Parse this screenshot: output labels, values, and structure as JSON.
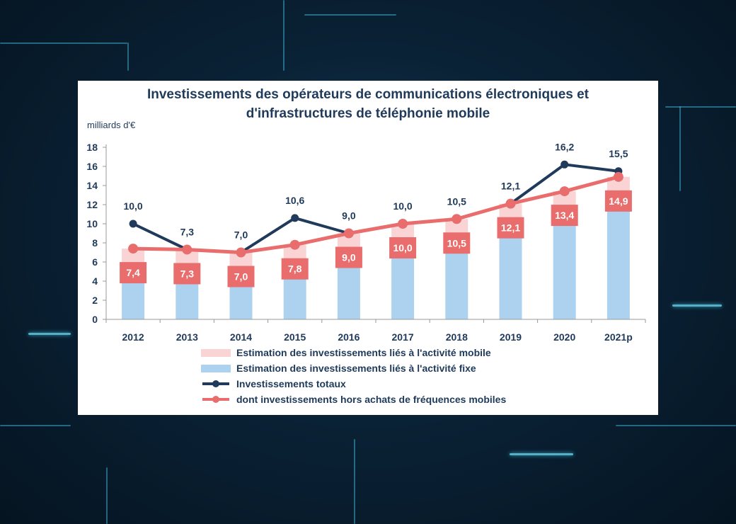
{
  "chart_data": {
    "type": "bar",
    "title": "Investissements des opérateurs de communications électroniques et d'infrastructures de téléphonie mobile",
    "title_lines": [
      "Investissements des opérateurs de communications électroniques et",
      "d'infrastructures de téléphonie mobile"
    ],
    "ylabel": "milliards d'€",
    "xlabel": "",
    "ylim": [
      0,
      18
    ],
    "y_ticks": [
      "0",
      "2",
      "4",
      "6",
      "8",
      "10",
      "12",
      "14",
      "16",
      "18"
    ],
    "categories": [
      "2012",
      "2013",
      "2014",
      "2015",
      "2016",
      "2017",
      "2018",
      "2019",
      "2020",
      "2021p"
    ],
    "series": [
      {
        "name": "Estimation des investissements liés à l'activité fixe",
        "kind": "bar",
        "color": "#acd2ef",
        "values": [
          4.7,
          4.5,
          4.5,
          4.9,
          6.0,
          6.7,
          7.2,
          9.2,
          10.6,
          11.5
        ]
      },
      {
        "name": "Estimation des investissements liés à l'activité mobile",
        "kind": "bar-stacked",
        "color": "#fad4d4",
        "values": [
          2.7,
          2.8,
          2.5,
          2.9,
          3.0,
          3.3,
          3.3,
          2.9,
          2.8,
          3.4
        ]
      },
      {
        "name": "Investissements totaux",
        "kind": "line",
        "color": "#1f3a5a",
        "values": [
          10.0,
          7.3,
          7.0,
          10.6,
          9.0,
          null,
          null,
          12.1,
          16.2,
          15.5
        ],
        "labels": [
          "10,0",
          "7,3",
          "7,0",
          "10,6",
          "9,0",
          "10,0",
          "10,5",
          "12,1",
          "16,2",
          "15,5"
        ]
      },
      {
        "name": "dont investissements hors achats de fréquences mobiles",
        "kind": "line",
        "color": "#e96d6d",
        "values": [
          7.4,
          7.3,
          7.0,
          7.8,
          9.0,
          10.0,
          10.5,
          12.1,
          13.4,
          14.9
        ],
        "labels": [
          "7,4",
          "7,3",
          "7,0",
          "7,8",
          "9,0",
          "10,0",
          "10,5",
          "12,1",
          "13,4",
          "14,9"
        ]
      }
    ],
    "legend": [
      {
        "label": "Estimation des investissements liés à l'activité mobile",
        "kind": "swatch",
        "color": "#fad4d4"
      },
      {
        "label": "Estimation des investissements liés à l'activité fixe",
        "kind": "swatch",
        "color": "#acd2ef"
      },
      {
        "label": "Investissements totaux",
        "kind": "line",
        "color": "#1f3a5a"
      },
      {
        "label": "dont investissements hors achats de fréquences mobiles",
        "kind": "line",
        "color": "#e96d6d"
      }
    ]
  }
}
